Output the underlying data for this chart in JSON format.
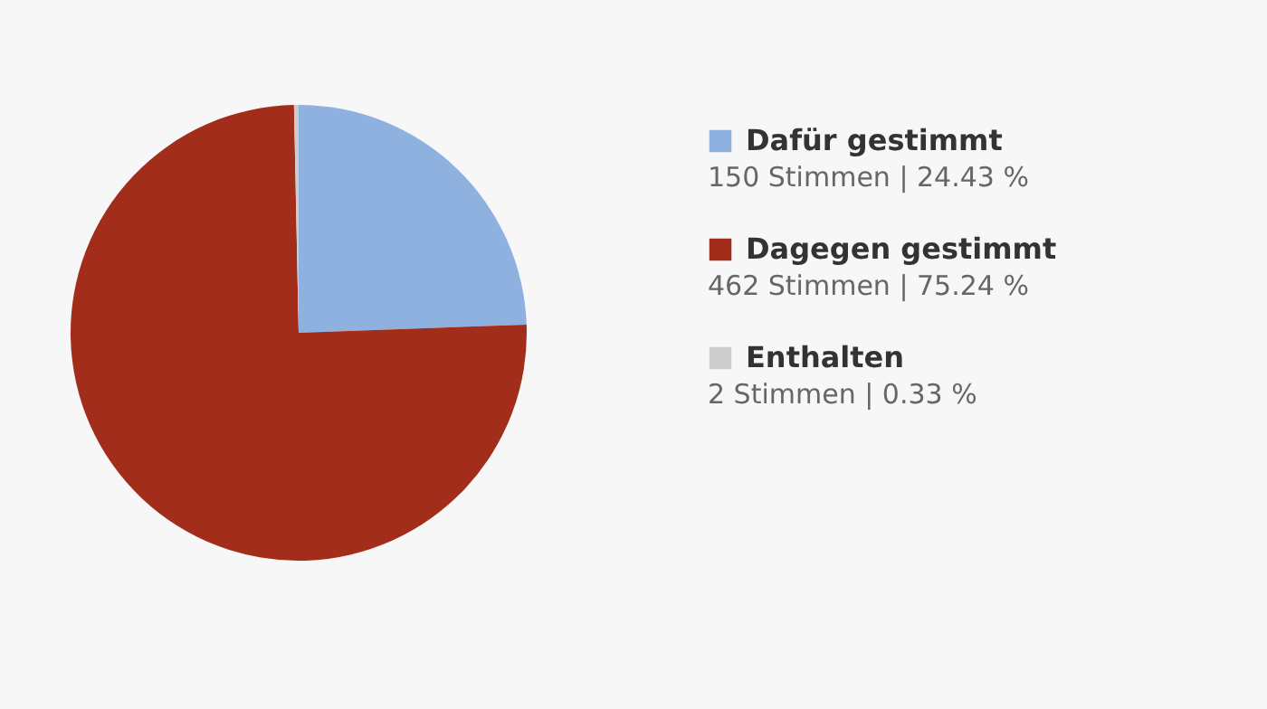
{
  "chart_data": {
    "type": "pie",
    "categories": [
      "Dafür gestimmt",
      "Dagegen gestimmt",
      "Enthalten"
    ],
    "values": [
      150,
      462,
      2
    ],
    "colors": [
      "#8fb1e0",
      "#a12d1a",
      "#cccccc"
    ],
    "value_labels": [
      "150 Stimmen | 24.43 %",
      "462 Stimmen | 75.24 %",
      "2 Stimmen | 0.33 %"
    ],
    "legend": "right"
  }
}
